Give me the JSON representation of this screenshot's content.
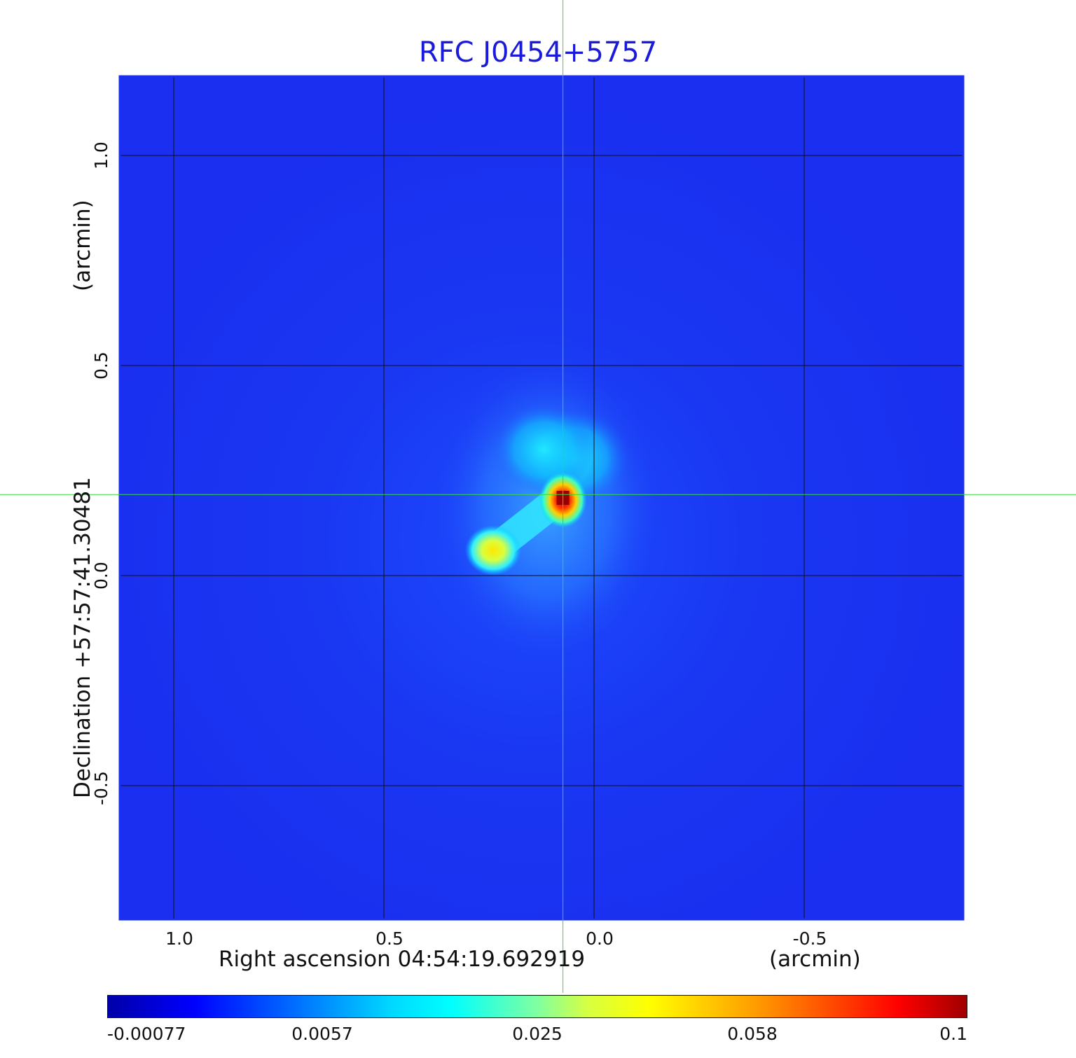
{
  "chart_data": {
    "type": "heatmap",
    "title": "RFC J0454+5757",
    "xlabel": "Right ascension  04:54:19.692919",
    "xunit": "(arcmin)",
    "ylabel": "Declination  +57:57:41.30481",
    "yunit": "(arcmin)",
    "xlim": [
      1.13,
      -0.88
    ],
    "ylim": [
      -0.82,
      1.19
    ],
    "x_ticks": [
      1.0,
      0.5,
      0.0,
      -0.5
    ],
    "x_tick_labels": [
      "1.0",
      "0.5",
      "0.0",
      "-0.5"
    ],
    "y_ticks": [
      1.0,
      0.5,
      0.0,
      -0.5
    ],
    "y_tick_labels": [
      "1.0",
      "0.5",
      "0.0",
      "-0.5"
    ],
    "grid": true,
    "crosshair": {
      "x": 0.074,
      "y": 0.193,
      "color": "#33dd33"
    },
    "sources": [
      {
        "x": 0.074,
        "y": 0.19,
        "peak": 0.1
      },
      {
        "x": 0.24,
        "y": 0.06,
        "peak": 0.06
      },
      {
        "x": 0.05,
        "y": 0.28,
        "peak": 0.012
      },
      {
        "x": 0.12,
        "y": 0.3,
        "peak": 0.008
      }
    ],
    "colorbar": {
      "ticks": [
        -0.00077,
        0.0057,
        0.025,
        0.058,
        0.1
      ],
      "labels": [
        "-0.00077",
        "0.0057",
        "0.025",
        "0.058",
        "0.1"
      ],
      "colormap": "jet"
    }
  }
}
